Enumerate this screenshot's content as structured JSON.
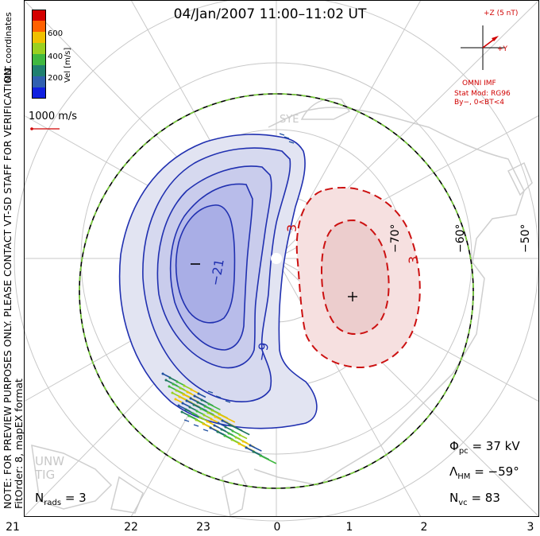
{
  "title": "04/Jan/2007  11:00–11:02  UT",
  "side_note": "NOTE: FOR PREVIEW PURPOSES ONLY. PLEASE CONTACT VT-SD STAFF FOR VERIFICATION.",
  "fit_note": "FitOrder: 8, mapEX format",
  "coords_label": "MLT coordinates",
  "colorbar": {
    "title": "Vel [m/s]",
    "ticks": [
      "600",
      "400",
      "200"
    ],
    "colors": [
      "#d40000",
      "#ff6000",
      "#f0c000",
      "#9ad020",
      "#40b840",
      "#208070",
      "#3060b0",
      "#1020e0"
    ]
  },
  "ref_vector": "1000 m/s",
  "imf": {
    "z_label": "+Z (5 nT)",
    "y_label": "+Y",
    "source": "OMNI IMF",
    "model": "Stat Mod: RG96",
    "condition": "By−, 0<BT<4"
  },
  "stats": {
    "phi_pc_symbol": "Φ",
    "phi_pc_sub": "pc",
    "phi_pc_value": "=  37 kV",
    "lambda_symbol": "Λ",
    "lambda_sub": "HM",
    "lambda_value": "=  −59°",
    "nvc_symbol": "N",
    "nvc_sub": "vc",
    "nvc_value": "=  83",
    "nrads_symbol": "N",
    "nrads_sub": "rads",
    "nrads_value": "=  3"
  },
  "mlt_labels": [
    "21",
    "22",
    "23",
    "0",
    "1",
    "2",
    "3"
  ],
  "lat_labels": [
    "−50°",
    "−60°",
    "−70°"
  ],
  "contour_labels": [
    "−21",
    "−9",
    "3",
    "3"
  ],
  "site_labels": [
    "SYE",
    "UNW",
    "TIG"
  ],
  "potential_markers": [
    "−",
    "+"
  ],
  "colors": {
    "negative_fill_outer": "#e2e4f2",
    "negative_fill_mid": "#c9ccec",
    "negative_fill_inner": "#a9aee6",
    "negative_line": "#2030b0",
    "positive_fill_outer": "#f6e0e0",
    "positive_fill_inner": "#eccdcd",
    "positive_line": "#cc1111",
    "imf_color": "#d00000",
    "grid": "#c8c8c8"
  }
}
